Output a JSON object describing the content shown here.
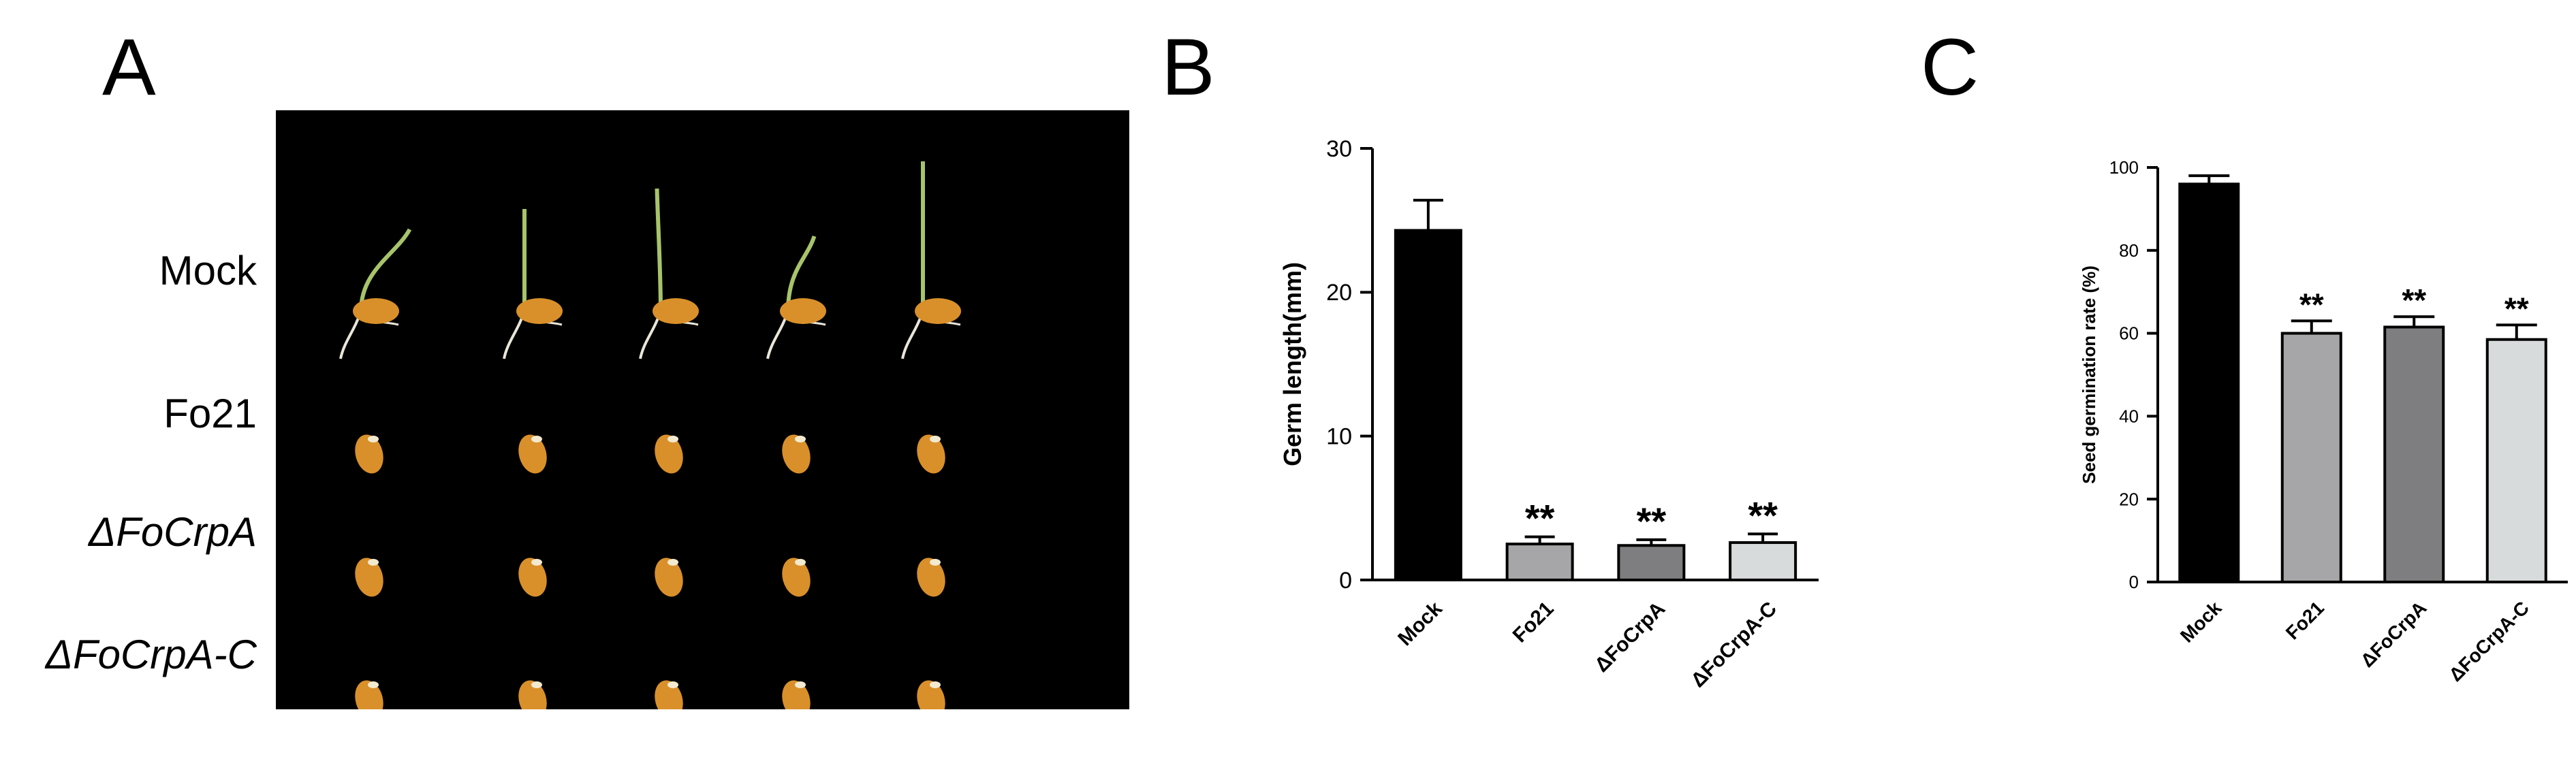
{
  "panels": {
    "a": "A",
    "b": "B",
    "c": "C"
  },
  "photo": {
    "rows": [
      {
        "label": "Mock",
        "italic": false
      },
      {
        "label": "Fo21",
        "italic": false
      },
      {
        "label": "ΔFoCrpA",
        "italic": true
      },
      {
        "label": "ΔFoCrpA-C",
        "italic": true
      }
    ],
    "seeds_per_row": 5,
    "colors": {
      "background": "#000000",
      "seed": "#d9902a",
      "sprout": "#a7c46a",
      "root": "#e9e6d8"
    }
  },
  "chart_data": [
    {
      "type": "bar",
      "panel": "B",
      "title": "",
      "xlabel": "",
      "ylabel": "Germ length(mm)",
      "categories": [
        "Mock",
        "Fo21",
        "ΔFoCrpA",
        "ΔFoCrpA-C"
      ],
      "values": [
        24.3,
        2.5,
        2.4,
        2.6
      ],
      "errors": [
        2.1,
        0.5,
        0.4,
        0.6
      ],
      "significance": [
        "",
        "**",
        "**",
        "**"
      ],
      "ylim": [
        0,
        30
      ],
      "yticks": [
        0,
        10,
        20,
        30
      ],
      "colors": [
        "#000000",
        "#a6a6a8",
        "#7e7e80",
        "#d8dbdc"
      ],
      "grid": false
    },
    {
      "type": "bar",
      "panel": "C",
      "title": "",
      "xlabel": "",
      "ylabel": "Seed germination rate (%)",
      "categories": [
        "Mock",
        "Fo21",
        "ΔFoCrpA",
        "ΔFoCrpA-C"
      ],
      "values": [
        96,
        60,
        61.5,
        58.5
      ],
      "errors": [
        2,
        3,
        2.5,
        3.5
      ],
      "significance": [
        "",
        "**",
        "**",
        "**"
      ],
      "ylim": [
        0,
        100
      ],
      "yticks": [
        0,
        20,
        40,
        60,
        80,
        100
      ],
      "colors": [
        "#000000",
        "#a6a6a8",
        "#7e7e80",
        "#d8dbdc"
      ],
      "grid": false
    }
  ]
}
